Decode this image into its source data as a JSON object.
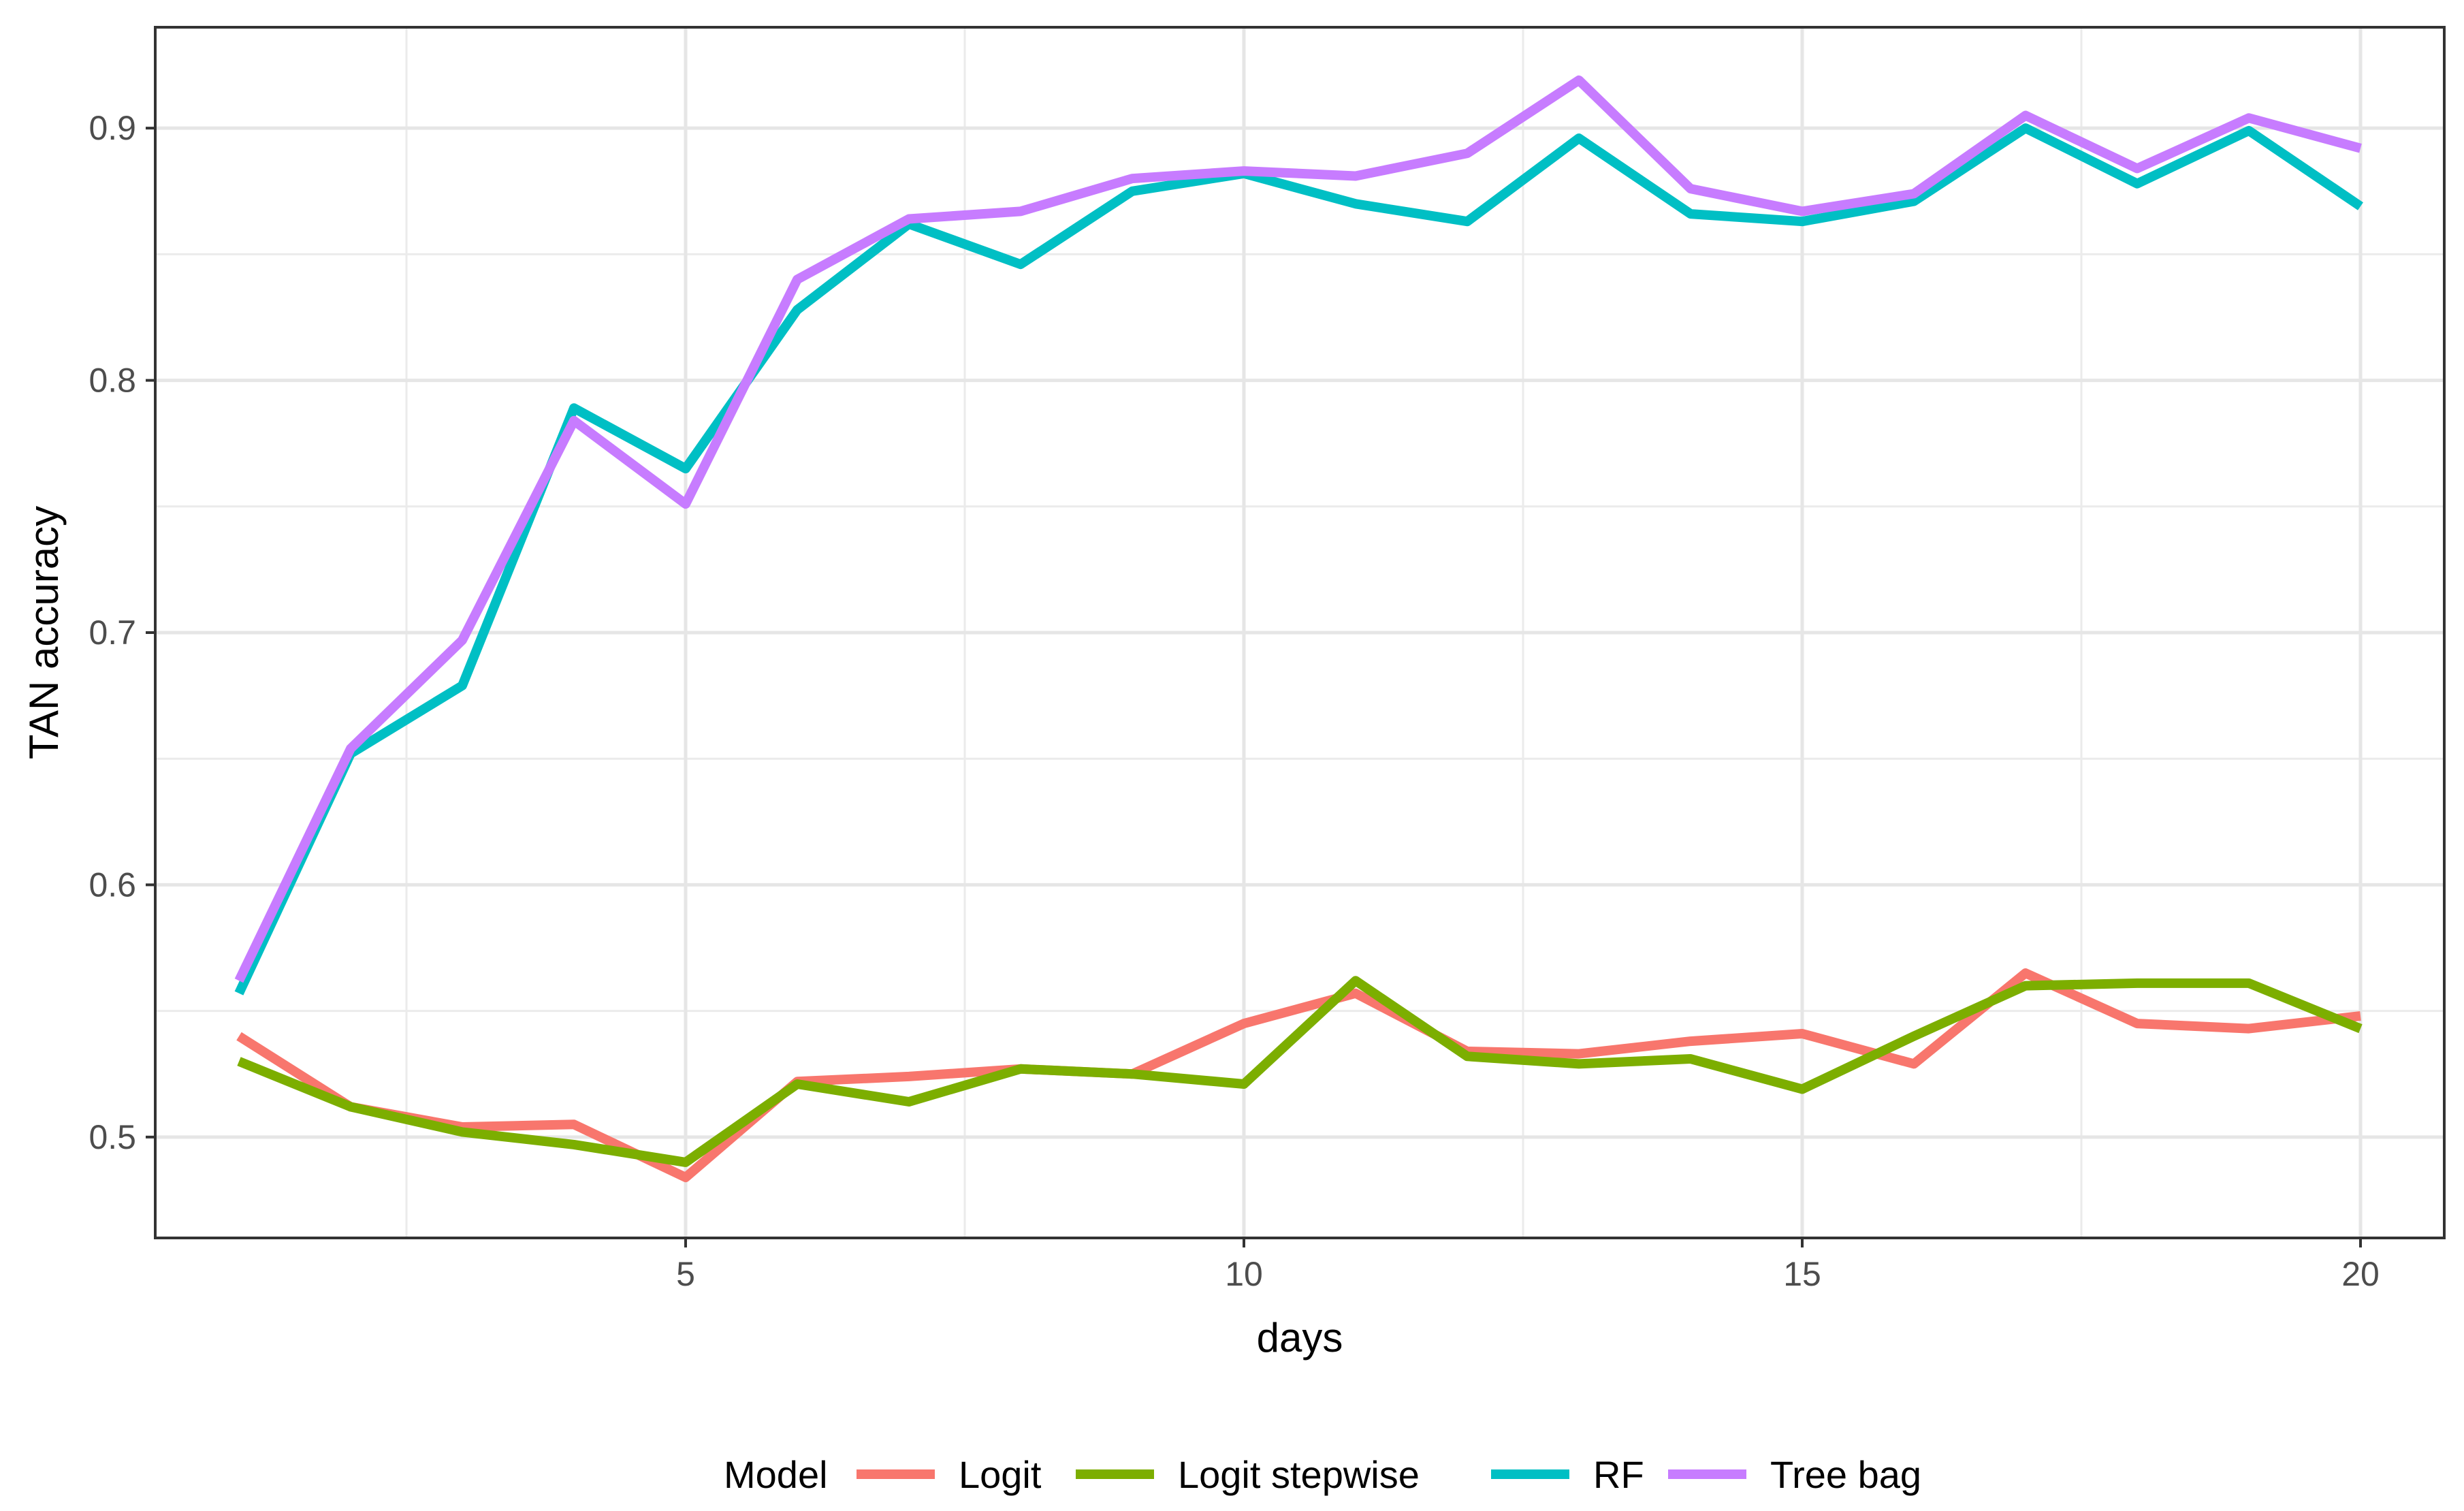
{
  "chart_data": {
    "type": "line",
    "title": "",
    "xlabel": "days",
    "ylabel": "TAN accuracy",
    "xlim": [
      0.25,
      20.75
    ],
    "ylim": [
      0.46,
      0.94
    ],
    "x_ticks": [
      5,
      10,
      15,
      20
    ],
    "y_ticks": [
      0.5,
      0.6,
      0.7,
      0.8,
      0.9
    ],
    "x_tick_labels": [
      "5",
      "10",
      "15",
      "20"
    ],
    "y_tick_labels": [
      "0.5",
      "0.6",
      "0.7",
      "0.8",
      "0.9"
    ],
    "grid": true,
    "legend": {
      "title": "Model",
      "position": "bottom"
    },
    "x": [
      1,
      2,
      3,
      4,
      5,
      6,
      7,
      8,
      9,
      10,
      11,
      12,
      13,
      14,
      15,
      16,
      17,
      18,
      19,
      20
    ],
    "series": [
      {
        "name": "Logit",
        "color": "#F8766D",
        "values": [
          0.54,
          0.512,
          0.504,
          0.505,
          0.484,
          0.522,
          0.524,
          0.527,
          0.525,
          0.545,
          0.557,
          0.534,
          0.533,
          0.538,
          0.541,
          0.529,
          0.565,
          0.545,
          0.543,
          0.548
        ]
      },
      {
        "name": "Logit stepwise",
        "color": "#7CAE00",
        "values": [
          0.53,
          0.512,
          0.502,
          0.497,
          0.49,
          0.521,
          0.514,
          0.527,
          0.525,
          0.521,
          0.562,
          0.532,
          0.529,
          0.531,
          0.519,
          0.54,
          0.56,
          0.561,
          0.561,
          0.543
        ]
      },
      {
        "name": "RF",
        "color": "#00BFC4",
        "values": [
          0.557,
          0.652,
          0.679,
          0.789,
          0.765,
          0.828,
          0.862,
          0.846,
          0.875,
          0.882,
          0.87,
          0.863,
          0.896,
          0.866,
          0.863,
          0.871,
          0.9,
          0.878,
          0.899,
          0.869
        ]
      },
      {
        "name": "Tree bag",
        "color": "#C77CFF",
        "values": [
          0.562,
          0.654,
          0.697,
          0.784,
          0.751,
          0.84,
          0.864,
          0.867,
          0.88,
          0.883,
          0.881,
          0.89,
          0.919,
          0.876,
          0.867,
          0.874,
          0.905,
          0.884,
          0.904,
          0.892
        ]
      }
    ]
  }
}
